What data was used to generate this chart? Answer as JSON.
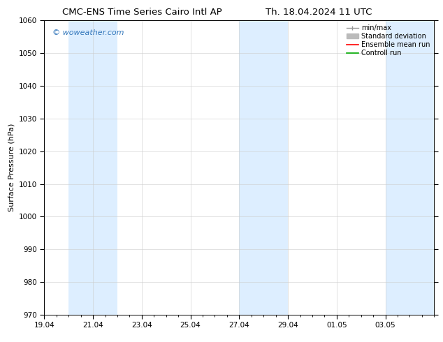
{
  "title_left": "CMC-ENS Time Series Cairo Intl AP",
  "title_right": "Th. 18.04.2024 11 UTC",
  "ylabel": "Surface Pressure (hPa)",
  "ylim": [
    970,
    1060
  ],
  "yticks": [
    970,
    980,
    990,
    1000,
    1010,
    1020,
    1030,
    1040,
    1050,
    1060
  ],
  "xtick_labels": [
    "19.04",
    "21.04",
    "23.04",
    "25.04",
    "27.04",
    "29.04",
    "01.05",
    "03.05"
  ],
  "xtick_positions": [
    0,
    2,
    4,
    6,
    8,
    10,
    12,
    14
  ],
  "xlim": [
    0,
    16
  ],
  "shaded_bands": [
    {
      "x_start": 1,
      "x_end": 3,
      "color": "#ddeeff"
    },
    {
      "x_start": 8,
      "x_end": 10,
      "color": "#ddeeff"
    },
    {
      "x_start": 14,
      "x_end": 16,
      "color": "#ddeeff"
    }
  ],
  "watermark": "© woweather.com",
  "watermark_color": "#3377bb",
  "background_color": "#ffffff",
  "legend_items": [
    {
      "label": "min/max",
      "color": "#999999",
      "lw": 1.0
    },
    {
      "label": "Standard deviation",
      "color": "#bbbbbb",
      "lw": 5
    },
    {
      "label": "Ensemble mean run",
      "color": "#ff0000",
      "lw": 1.2
    },
    {
      "label": "Controll run",
      "color": "#00aa00",
      "lw": 1.2
    }
  ],
  "title_fontsize": 9.5,
  "ylabel_fontsize": 8,
  "tick_fontsize": 7.5,
  "legend_fontsize": 7,
  "watermark_fontsize": 8
}
